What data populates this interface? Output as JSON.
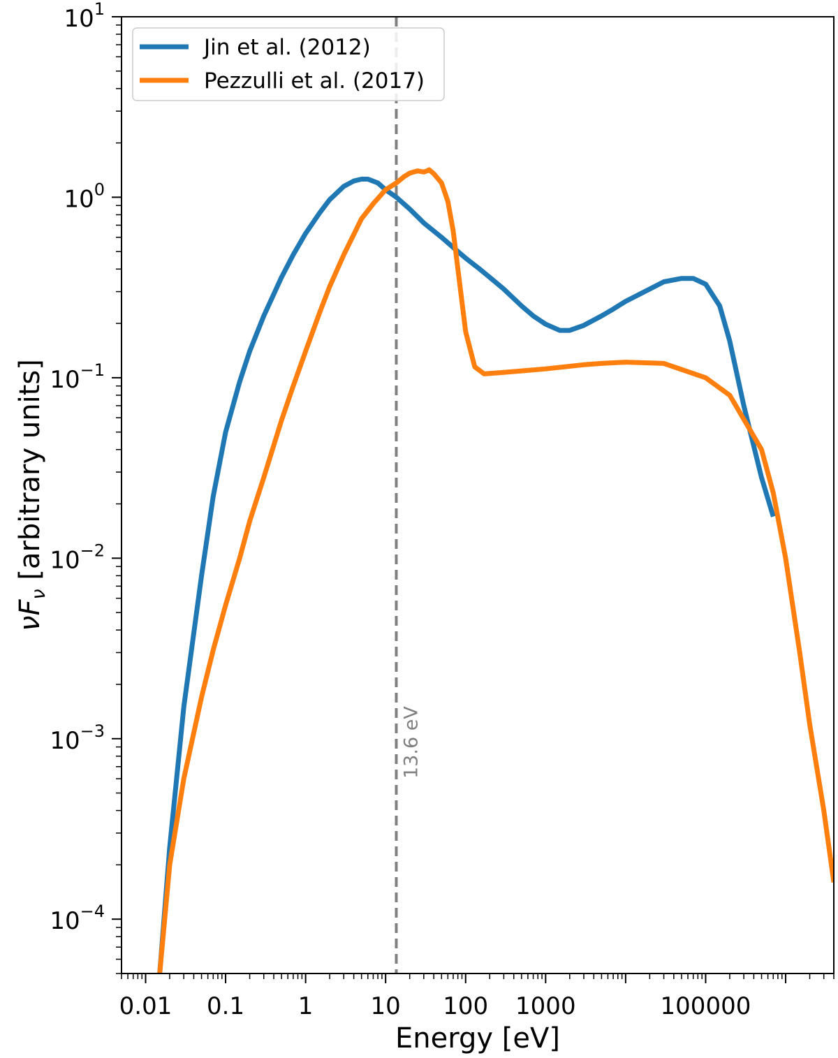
{
  "chart_data": {
    "type": "line",
    "xlabel": "Energy [eV]",
    "ylabel_prefix": "νF",
    "ylabel_sub": "ν",
    "ylabel_suffix": " [arbitrary units]",
    "xscale": "log",
    "yscale": "log",
    "xlim": [
      0.005,
      4000000
    ],
    "ylim": [
      5e-05,
      10
    ],
    "x_tick_labels": [
      {
        "value": 0.01,
        "label": "0.01"
      },
      {
        "value": 0.1,
        "label": "0.1"
      },
      {
        "value": 1,
        "label": "1"
      },
      {
        "value": 10,
        "label": "10"
      },
      {
        "value": 100,
        "label": "100"
      },
      {
        "value": 1000,
        "label": "1000"
      },
      {
        "value": 100000,
        "label": "100000"
      }
    ],
    "y_tick_labels": [
      {
        "value": 0.0001,
        "base": "10",
        "exp": "−4"
      },
      {
        "value": 0.001,
        "base": "10",
        "exp": "−3"
      },
      {
        "value": 0.01,
        "base": "10",
        "exp": "−2"
      },
      {
        "value": 0.1,
        "base": "10",
        "exp": "−1"
      },
      {
        "value": 1,
        "base": "10",
        "exp": "0"
      },
      {
        "value": 10,
        "base": "10",
        "exp": "1"
      }
    ],
    "grid": false,
    "legend_position": "top-left",
    "vline": {
      "x": 13.6,
      "label": "13.6 eV",
      "color": "#808080"
    },
    "series": [
      {
        "name": "Jin et al. (2012)",
        "color": "#1f77b4",
        "x": [
          0.015,
          0.02,
          0.03,
          0.05,
          0.07,
          0.1,
          0.15,
          0.2,
          0.3,
          0.5,
          0.7,
          1,
          1.5,
          2,
          3,
          4,
          5,
          6,
          8,
          10,
          13.6,
          20,
          30,
          50,
          80,
          100,
          150,
          200,
          300,
          500,
          700,
          1000,
          1500,
          2000,
          3000,
          5000,
          7000,
          10000,
          20000,
          30000,
          50000,
          70000,
          100000,
          150000,
          200000,
          300000,
          500000,
          700000
        ],
        "y": [
          5e-05,
          0.00025,
          0.0015,
          0.008,
          0.022,
          0.05,
          0.095,
          0.14,
          0.22,
          0.36,
          0.48,
          0.63,
          0.82,
          0.97,
          1.15,
          1.23,
          1.26,
          1.26,
          1.2,
          1.1,
          1.0,
          0.86,
          0.72,
          0.6,
          0.5,
          0.46,
          0.4,
          0.36,
          0.31,
          0.25,
          0.22,
          0.198,
          0.183,
          0.183,
          0.195,
          0.22,
          0.24,
          0.265,
          0.31,
          0.34,
          0.355,
          0.355,
          0.33,
          0.25,
          0.16,
          0.07,
          0.028,
          0.017
        ]
      },
      {
        "name": "Pezzulli et al. (2017)",
        "color": "#ff7f0e",
        "x": [
          0.015,
          0.02,
          0.03,
          0.05,
          0.07,
          0.1,
          0.15,
          0.2,
          0.3,
          0.5,
          0.7,
          1,
          1.5,
          2,
          3,
          5,
          7,
          10,
          13.6,
          17,
          20,
          25,
          30,
          33,
          35,
          40,
          50,
          60,
          70,
          80,
          100,
          130,
          170,
          300,
          1000,
          3000,
          5000,
          10000,
          30000,
          100000,
          200000,
          500000,
          700000,
          1000000,
          1500000,
          2000000,
          3000000,
          4000000
        ],
        "y": [
          5e-05,
          0.0002,
          0.0006,
          0.0017,
          0.0031,
          0.0055,
          0.01,
          0.016,
          0.028,
          0.058,
          0.09,
          0.14,
          0.23,
          0.32,
          0.48,
          0.76,
          0.92,
          1.1,
          1.2,
          1.3,
          1.36,
          1.4,
          1.38,
          1.4,
          1.42,
          1.35,
          1.2,
          0.95,
          0.65,
          0.4,
          0.18,
          0.115,
          0.105,
          0.107,
          0.112,
          0.118,
          0.12,
          0.122,
          0.12,
          0.1,
          0.08,
          0.04,
          0.023,
          0.01,
          0.003,
          0.0012,
          0.0004,
          0.00016
        ]
      }
    ]
  }
}
